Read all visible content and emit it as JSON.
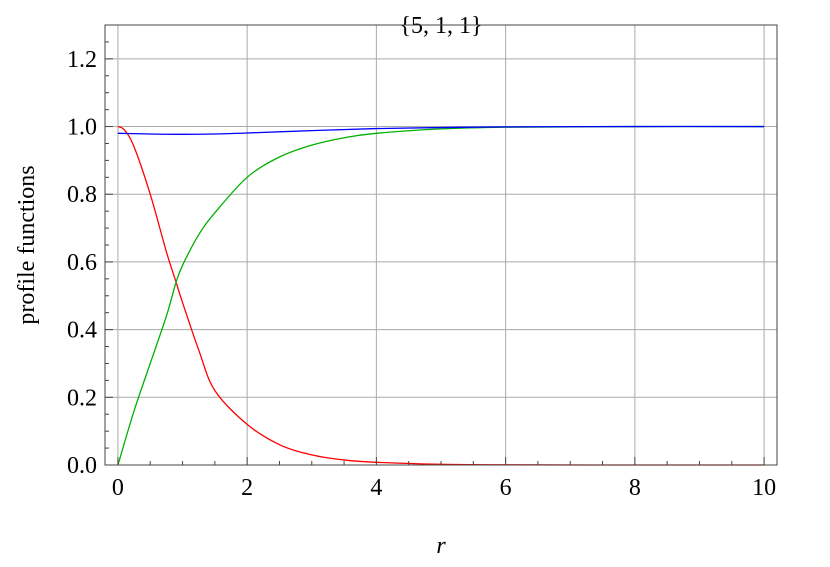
{
  "chart_data": {
    "type": "line",
    "title": "{5, 1, 1}",
    "xlabel": "r",
    "ylabel": "profile functions",
    "xlim": [
      -0.2,
      10.2
    ],
    "ylim": [
      0,
      1.3
    ],
    "xticks": [
      "0",
      "2",
      "4",
      "6",
      "8",
      "10"
    ],
    "yticks": [
      "0.0",
      "0.2",
      "0.4",
      "0.6",
      "0.8",
      "1.0",
      "1.2"
    ],
    "grid": true,
    "series": [
      {
        "color": "#ff0000",
        "x": [
          0,
          0.1,
          0.25,
          0.5,
          0.75,
          0.9,
          1,
          1.25,
          1.5,
          2,
          2.5,
          3,
          3.5,
          4,
          5,
          6,
          8,
          10
        ],
        "y": [
          1.0,
          0.99,
          0.94,
          0.8,
          0.63,
          0.54,
          0.48,
          0.34,
          0.22,
          0.12,
          0.06,
          0.03,
          0.015,
          0.008,
          0.002,
          0.0005,
          0.0,
          0.0
        ]
      },
      {
        "color": "#00b000",
        "x": [
          0,
          0.25,
          0.5,
          0.75,
          0.9,
          1,
          1.25,
          1.5,
          2,
          2.5,
          3,
          3.5,
          4,
          5,
          6,
          8,
          10
        ],
        "y": [
          0.0,
          0.16,
          0.3,
          0.44,
          0.54,
          0.59,
          0.68,
          0.745,
          0.85,
          0.91,
          0.945,
          0.967,
          0.98,
          0.993,
          0.998,
          1.0,
          1.0
        ]
      },
      {
        "color": "#0000ff",
        "x": [
          0,
          0.5,
          1,
          1.5,
          2,
          3,
          4,
          5,
          6,
          8,
          10
        ],
        "y": [
          0.98,
          0.978,
          0.977,
          0.978,
          0.981,
          0.988,
          0.994,
          0.997,
          0.999,
          1.0,
          1.0
        ]
      }
    ]
  }
}
